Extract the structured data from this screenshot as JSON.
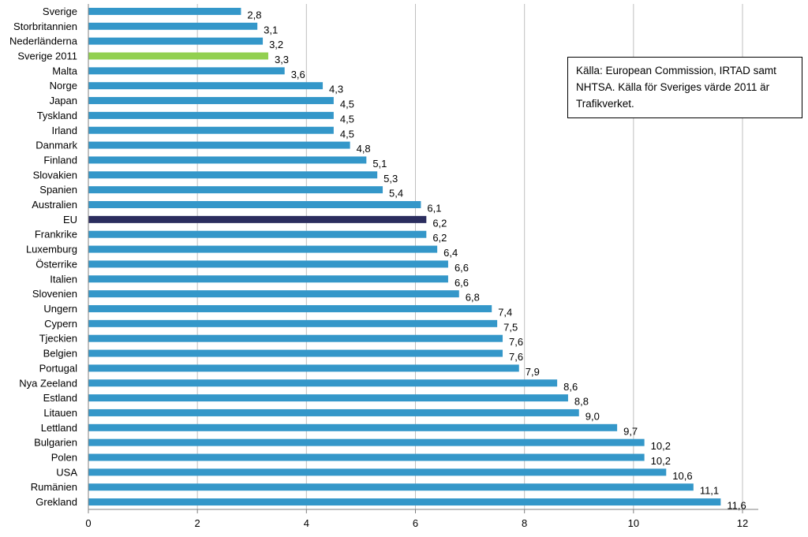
{
  "chart_data": {
    "type": "bar",
    "orientation": "horizontal",
    "categories": [
      "Sverige",
      "Storbritannien",
      "Nederländerna",
      "Sverige 2011",
      "Malta",
      "Norge",
      "Japan",
      "Tyskland",
      "Irland",
      "Danmark",
      "Finland",
      "Slovakien",
      "Spanien",
      "Australien",
      "EU",
      "Frankrike",
      "Luxemburg",
      "Österrike",
      "Italien",
      "Slovenien",
      "Ungern",
      "Cypern",
      "Tjeckien",
      "Belgien",
      "Portugal",
      "Nya Zeeland",
      "Estland",
      "Litauen",
      "Lettland",
      "Bulgarien",
      "Polen",
      "USA",
      "Rumänien",
      "Grekland"
    ],
    "values": [
      2.8,
      3.1,
      3.2,
      3.3,
      3.6,
      4.3,
      4.5,
      4.5,
      4.5,
      4.8,
      5.1,
      5.3,
      5.4,
      6.1,
      6.2,
      6.2,
      6.4,
      6.6,
      6.6,
      6.8,
      7.4,
      7.5,
      7.6,
      7.6,
      7.9,
      8.6,
      8.8,
      9.0,
      9.7,
      10.2,
      10.2,
      10.6,
      11.1,
      11.6
    ],
    "value_labels": [
      "2,8",
      "3,1",
      "3,2",
      "3,3",
      "3,6",
      "4,3",
      "4,5",
      "4,5",
      "4,5",
      "4,8",
      "5,1",
      "5,3",
      "5,4",
      "6,1",
      "6,2",
      "6,2",
      "6,4",
      "6,6",
      "6,6",
      "6,8",
      "7,4",
      "7,5",
      "7,6",
      "7,6",
      "7,9",
      "8,6",
      "8,8",
      "9,0",
      "9,7",
      "10,2",
      "10,2",
      "10,6",
      "11,1",
      "11,6"
    ],
    "xlim": [
      0,
      12
    ],
    "x_ticks": [
      "0",
      "2",
      "4",
      "6",
      "8",
      "10",
      "12"
    ],
    "grid": "vertical",
    "colors": {
      "default": "#3497c9",
      "highlight_sverige_2011": "#92d050",
      "highlight_eu": "#2b2d5e",
      "grid": "#bfbfbf"
    },
    "highlight": {
      "Sverige 2011": "#92d050",
      "EU": "#2b2d5e"
    },
    "annotation": "Källa: European Commission, IRTAD samt NHTSA.  Källa för  Sveriges värde 2011 är Trafikverket."
  }
}
